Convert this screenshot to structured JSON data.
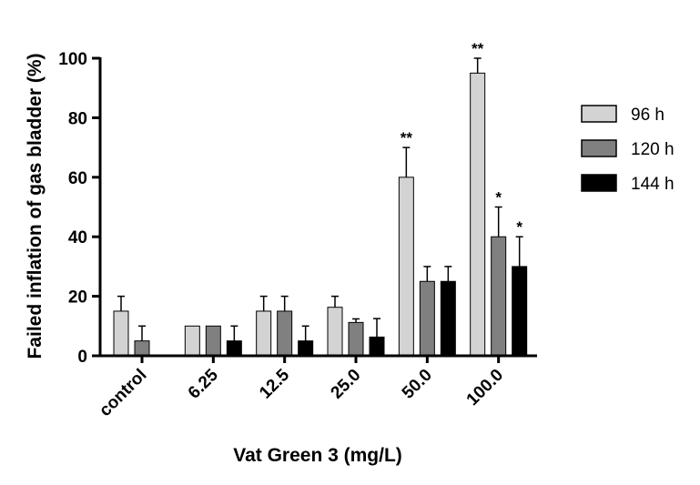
{
  "chart_data": {
    "type": "bar",
    "xlabel": "Vat Green 3 (mg/L)",
    "ylabel": "Failed inflation of gas bladder (%)",
    "ylim": [
      0,
      100
    ],
    "yticks": [
      "0",
      "20",
      "40",
      "60",
      "80",
      "100"
    ],
    "categories": [
      "control",
      "6.25",
      "12.5",
      "25.0",
      "50.0",
      "100.0"
    ],
    "series": [
      {
        "name": "96 h",
        "color": "#d3d3d3",
        "values": [
          15,
          10,
          15,
          16.3,
          60,
          95
        ],
        "errors": [
          5,
          0,
          5,
          3.7,
          10,
          5
        ],
        "significance": [
          "",
          "",
          "",
          "",
          "**",
          "**"
        ]
      },
      {
        "name": "120 h",
        "color": "#808080",
        "values": [
          5,
          10,
          15,
          11.2,
          25,
          40
        ],
        "errors": [
          5,
          0,
          5,
          1.2,
          5,
          10
        ],
        "significance": [
          "",
          "",
          "",
          "",
          "",
          "*"
        ]
      },
      {
        "name": "144 h",
        "color": "#000000",
        "values": [
          0,
          5,
          5,
          6.3,
          25,
          30
        ],
        "errors": [
          0,
          5,
          5,
          6.2,
          5,
          10
        ],
        "significance": [
          "",
          "",
          "",
          "",
          "",
          "*"
        ]
      }
    ],
    "legend": "right",
    "grid": false
  }
}
